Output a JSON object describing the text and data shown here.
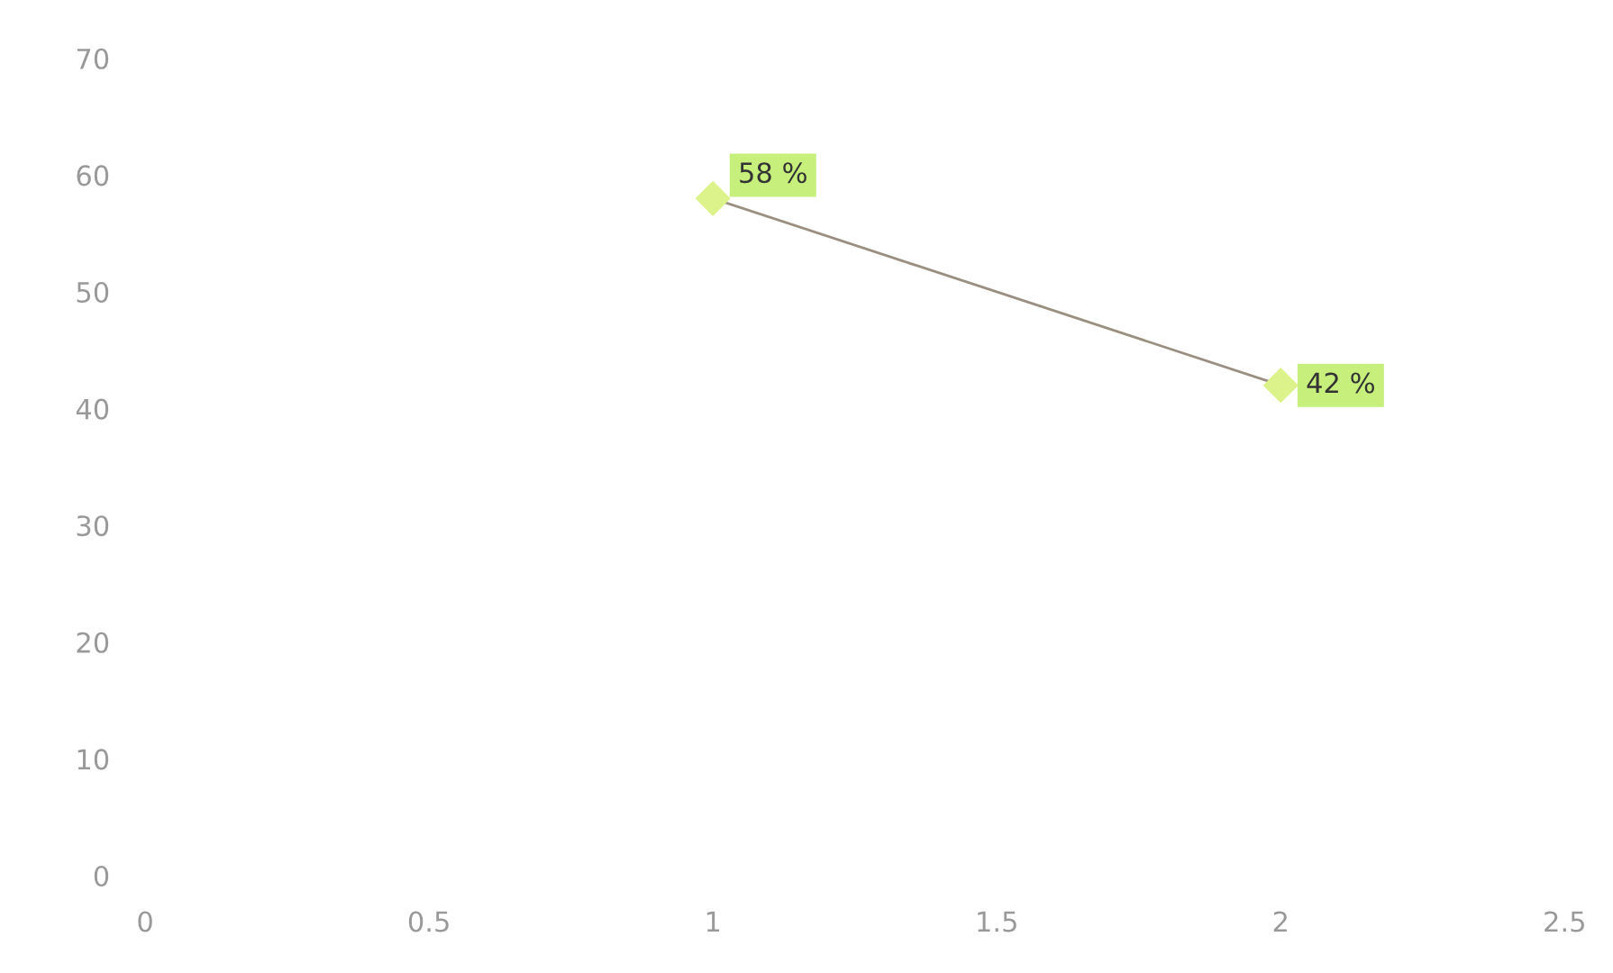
{
  "chart_data": {
    "type": "line",
    "x": [
      1,
      2
    ],
    "series": [
      {
        "color": "#9a8f80",
        "values": [
          58,
          42
        ],
        "value_labels": [
          "58 %",
          "42 %"
        ]
      }
    ],
    "marker": "diamond",
    "line_style": "solid",
    "xlim": [
      0,
      2.5
    ],
    "xticks": [
      0,
      0.5,
      1,
      1.5,
      2,
      2.5
    ],
    "ylim": [
      0,
      70
    ],
    "yticks": [
      0,
      10,
      20,
      30,
      40,
      50,
      60,
      70
    ],
    "grid": false,
    "legend": false
  }
}
